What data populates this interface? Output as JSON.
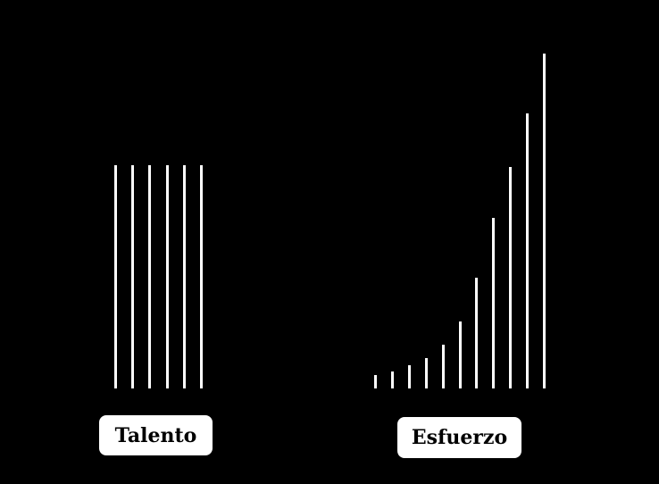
{
  "groups": [
    {
      "label": "Talento",
      "values": [
        1,
        1,
        1,
        1,
        1,
        1
      ]
    },
    {
      "label": "Esfuerzo",
      "values": [
        0.04,
        0.05,
        0.07,
        0.09,
        0.13,
        0.2,
        0.33,
        0.51,
        0.66,
        0.82,
        1.0
      ]
    }
  ],
  "colors": {
    "background": "#000000",
    "bars": "#ffffff",
    "label_bg": "#ffffff",
    "label_text": "#000000"
  }
}
